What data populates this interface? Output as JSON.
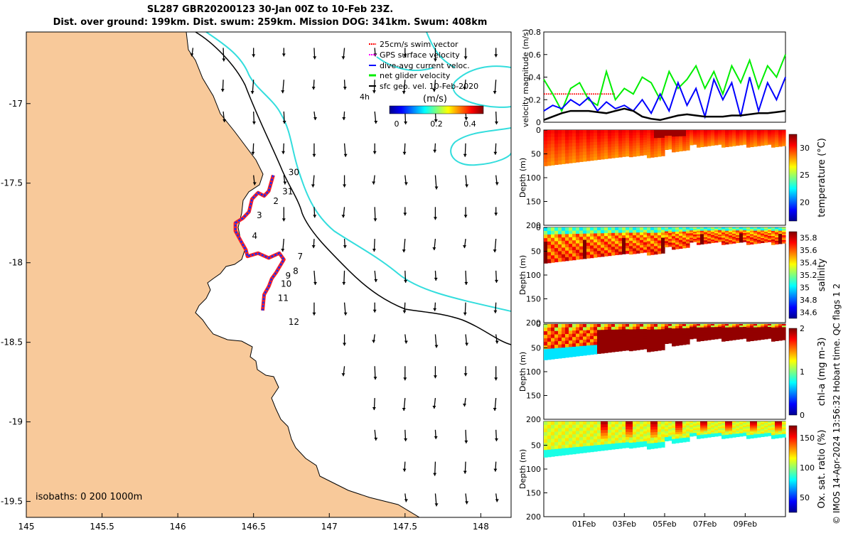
{
  "title_line1": "SL287 GBR20200123 30-Jan 00Z to 10-Feb 23Z.",
  "title_line2": "Dist. over ground: 199km. Dist. swum: 259km. Mission DOG: 341km. Swum: 408km",
  "copyright": "© IMOS 14-Apr-2024 13:56:32 Hobart time. QC flags 1  2",
  "colors": {
    "land": "#f8c99a",
    "accent_cyan": "#33dddd",
    "swim": "#ff0000",
    "gps": "#ff00ff",
    "current": "#0000ff",
    "net": "#00ee00",
    "geo": "#000000"
  },
  "chart_data": [
    {
      "type": "map",
      "xlim": [
        145,
        148.2
      ],
      "ylim": [
        -19.6,
        -16.55
      ],
      "x_ticks": [
        "145",
        "145.5",
        "146",
        "146.5",
        "147",
        "147.5",
        "148"
      ],
      "y_ticks": [
        "-17",
        "-17.5",
        "-18",
        "-18.5",
        "-19",
        "-19.5"
      ],
      "legend": [
        "25cm/s swim vector",
        "GPS surface velocity",
        "dive-avg current veloc.",
        "net glider velocity",
        "sfc geo. vel. 10-Feb-2020"
      ],
      "legend_4h": "4h",
      "colorbar_title": "(m/s)",
      "colorbar_ticks": [
        "0",
        "0.2",
        "0.4"
      ],
      "isobaths_label": "isobaths: 0   200  1000m",
      "track": [
        [
          146.63,
          -17.45
        ],
        [
          146.6,
          -17.55
        ],
        [
          146.57,
          -17.58
        ],
        [
          146.53,
          -17.56
        ],
        [
          146.49,
          -17.6
        ],
        [
          146.47,
          -17.68
        ],
        [
          146.43,
          -17.72
        ],
        [
          146.38,
          -17.75
        ],
        [
          146.38,
          -17.8
        ],
        [
          146.42,
          -17.87
        ],
        [
          146.45,
          -17.92
        ],
        [
          146.46,
          -17.96
        ],
        [
          146.53,
          -17.94
        ],
        [
          146.6,
          -17.97
        ],
        [
          146.67,
          -17.94
        ],
        [
          146.7,
          -17.98
        ],
        [
          146.65,
          -18.06
        ],
        [
          146.62,
          -18.1
        ],
        [
          146.6,
          -18.15
        ],
        [
          146.57,
          -18.2
        ],
        [
          146.56,
          -18.3
        ]
      ],
      "day_labels": [
        [
          "30",
          146.73,
          -17.45
        ],
        [
          "31",
          146.69,
          -17.57
        ],
        [
          "2",
          146.63,
          -17.63
        ],
        [
          "3",
          146.52,
          -17.72
        ],
        [
          "4",
          146.49,
          -17.85
        ],
        [
          "7",
          146.79,
          -17.98
        ],
        [
          "8",
          146.76,
          -18.07
        ],
        [
          "9",
          146.71,
          -18.1
        ],
        [
          "10",
          146.68,
          -18.15
        ],
        [
          "11",
          146.66,
          -18.24
        ],
        [
          "12",
          146.73,
          -18.39
        ]
      ]
    },
    {
      "type": "line",
      "ylabel": "velocity magnitude (m/s)",
      "ylim": [
        0,
        0.8
      ],
      "y_ticks": [
        "0",
        "0.2",
        "0.4",
        "0.6",
        "0.8"
      ],
      "xlim_days": [
        0,
        12
      ],
      "series": [
        {
          "name": "swim",
          "color": "#ff0000",
          "values": [
            0.25,
            0.25,
            0.25,
            0.25,
            0.25,
            0.25,
            0.25,
            0.25
          ]
        },
        {
          "name": "net glider velocity",
          "color": "#00ee00",
          "values": [
            0.38,
            0.25,
            0.1,
            0.3,
            0.35,
            0.2,
            0.15,
            0.45,
            0.2,
            0.3,
            0.25,
            0.4,
            0.35,
            0.2,
            0.45,
            0.3,
            0.38,
            0.5,
            0.3,
            0.45,
            0.25,
            0.5,
            0.35,
            0.55,
            0.3,
            0.5,
            0.4,
            0.6
          ]
        },
        {
          "name": "dive-avg current",
          "color": "#0000ff",
          "values": [
            0.1,
            0.15,
            0.12,
            0.2,
            0.15,
            0.22,
            0.1,
            0.18,
            0.12,
            0.15,
            0.1,
            0.2,
            0.08,
            0.25,
            0.1,
            0.35,
            0.15,
            0.3,
            0.05,
            0.38,
            0.2,
            0.35,
            0.05,
            0.4,
            0.1,
            0.35,
            0.2,
            0.4
          ]
        },
        {
          "name": "sfc geo. vel.",
          "color": "#000000",
          "values": [
            0.02,
            0.05,
            0.08,
            0.1,
            0.1,
            0.1,
            0.09,
            0.08,
            0.1,
            0.12,
            0.1,
            0.05,
            0.03,
            0.02,
            0.04,
            0.06,
            0.07,
            0.06,
            0.05,
            0.05,
            0.05,
            0.06,
            0.06,
            0.07,
            0.08,
            0.08,
            0.09,
            0.1
          ]
        }
      ]
    },
    {
      "type": "heatmap",
      "ylabel": "Depth (m)",
      "cblabel": "temperature (°C)",
      "ylim": [
        200,
        0
      ],
      "y_ticks": [
        "0",
        "50",
        "100",
        "150",
        "200"
      ],
      "cb_ticks": [
        "20",
        "25",
        "30"
      ],
      "cb_range": [
        16.5,
        32.5
      ]
    },
    {
      "type": "heatmap",
      "ylabel": "Depth (m)",
      "cblabel": "salinity",
      "ylim": [
        200,
        0
      ],
      "y_ticks": [
        "0",
        "50",
        "100",
        "150",
        "200"
      ],
      "cb_ticks": [
        "34.6",
        "34.8",
        "35",
        "35.2",
        "35.4",
        "35.6",
        "35.8"
      ],
      "cb_range": [
        34.5,
        35.9
      ]
    },
    {
      "type": "heatmap",
      "ylabel": "Depth (m)",
      "cblabel": "chl-a (mg m-3)",
      "ylim": [
        200,
        0
      ],
      "y_ticks": [
        "0",
        "50",
        "100",
        "150",
        "200"
      ],
      "cb_ticks": [
        "0",
        "1",
        "2"
      ],
      "cb_range": [
        0,
        2
      ]
    },
    {
      "type": "heatmap",
      "ylabel": "Depth (m)",
      "cblabel": "Ox. sat. ratio (%)",
      "ylim": [
        200,
        0
      ],
      "y_ticks": [
        "50",
        "100",
        "150",
        "200"
      ],
      "cb_ticks": [
        "50",
        "100",
        "150"
      ],
      "cb_range": [
        25,
        170
      ],
      "x_ticks": [
        "01Feb",
        "03Feb",
        "05Feb",
        "07Feb",
        "09Feb"
      ],
      "x_tick_days": [
        2,
        4,
        6,
        8,
        10
      ]
    }
  ]
}
